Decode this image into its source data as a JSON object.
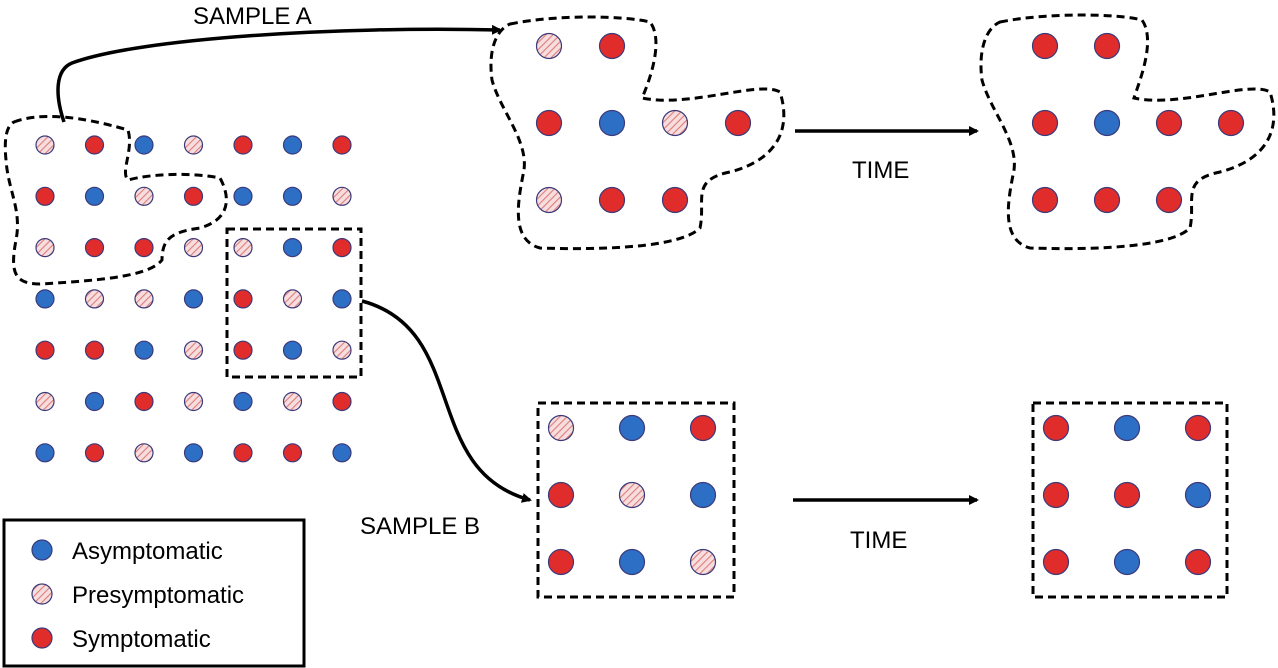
{
  "colors": {
    "asymptomatic": "#2e6fc6",
    "symptomatic": "#e12c2c",
    "presymptomatic_fill": "#f7dede",
    "presymptomatic_hatch": "#e07b7b",
    "outline": "#3a3a7a"
  },
  "labels": {
    "sample_a": "SAMPLE A",
    "sample_b": "SAMPLE B",
    "time_a": "TIME",
    "time_b": "TIME"
  },
  "legend": {
    "items": [
      {
        "type": "A",
        "label": "Asymptomatic"
      },
      {
        "type": "P",
        "label": "Presymptomatic"
      },
      {
        "type": "S",
        "label": "Symptomatic"
      }
    ]
  },
  "population_grid": [
    [
      "P",
      "S",
      "A",
      "P",
      "S",
      "A",
      "S"
    ],
    [
      "S",
      "A",
      "P",
      "S",
      "A",
      "A",
      "P"
    ],
    [
      "P",
      "S",
      "S",
      "P",
      "P",
      "A",
      "S"
    ],
    [
      "A",
      "P",
      "P",
      "A",
      "S",
      "P",
      "A"
    ],
    [
      "S",
      "S",
      "A",
      "P",
      "S",
      "A",
      "P"
    ],
    [
      "P",
      "A",
      "S",
      "P",
      "A",
      "P",
      "S"
    ],
    [
      "A",
      "S",
      "P",
      "A",
      "S",
      "S",
      "A"
    ]
  ],
  "sample_a_before": [
    [
      "P",
      "S",
      null,
      null
    ],
    [
      "S",
      "A",
      "P",
      "S"
    ],
    [
      "P",
      "S",
      "S",
      null
    ]
  ],
  "sample_a_after": [
    [
      "S",
      "S",
      null,
      null
    ],
    [
      "S",
      "A",
      "S",
      "S"
    ],
    [
      "S",
      "S",
      "S",
      null
    ]
  ],
  "sample_b_before": [
    [
      "P",
      "A",
      "S"
    ],
    [
      "S",
      "P",
      "A"
    ],
    [
      "S",
      "A",
      "P"
    ]
  ],
  "sample_b_after": [
    [
      "S",
      "A",
      "S"
    ],
    [
      "S",
      "S",
      "A"
    ],
    [
      "S",
      "A",
      "S"
    ]
  ]
}
